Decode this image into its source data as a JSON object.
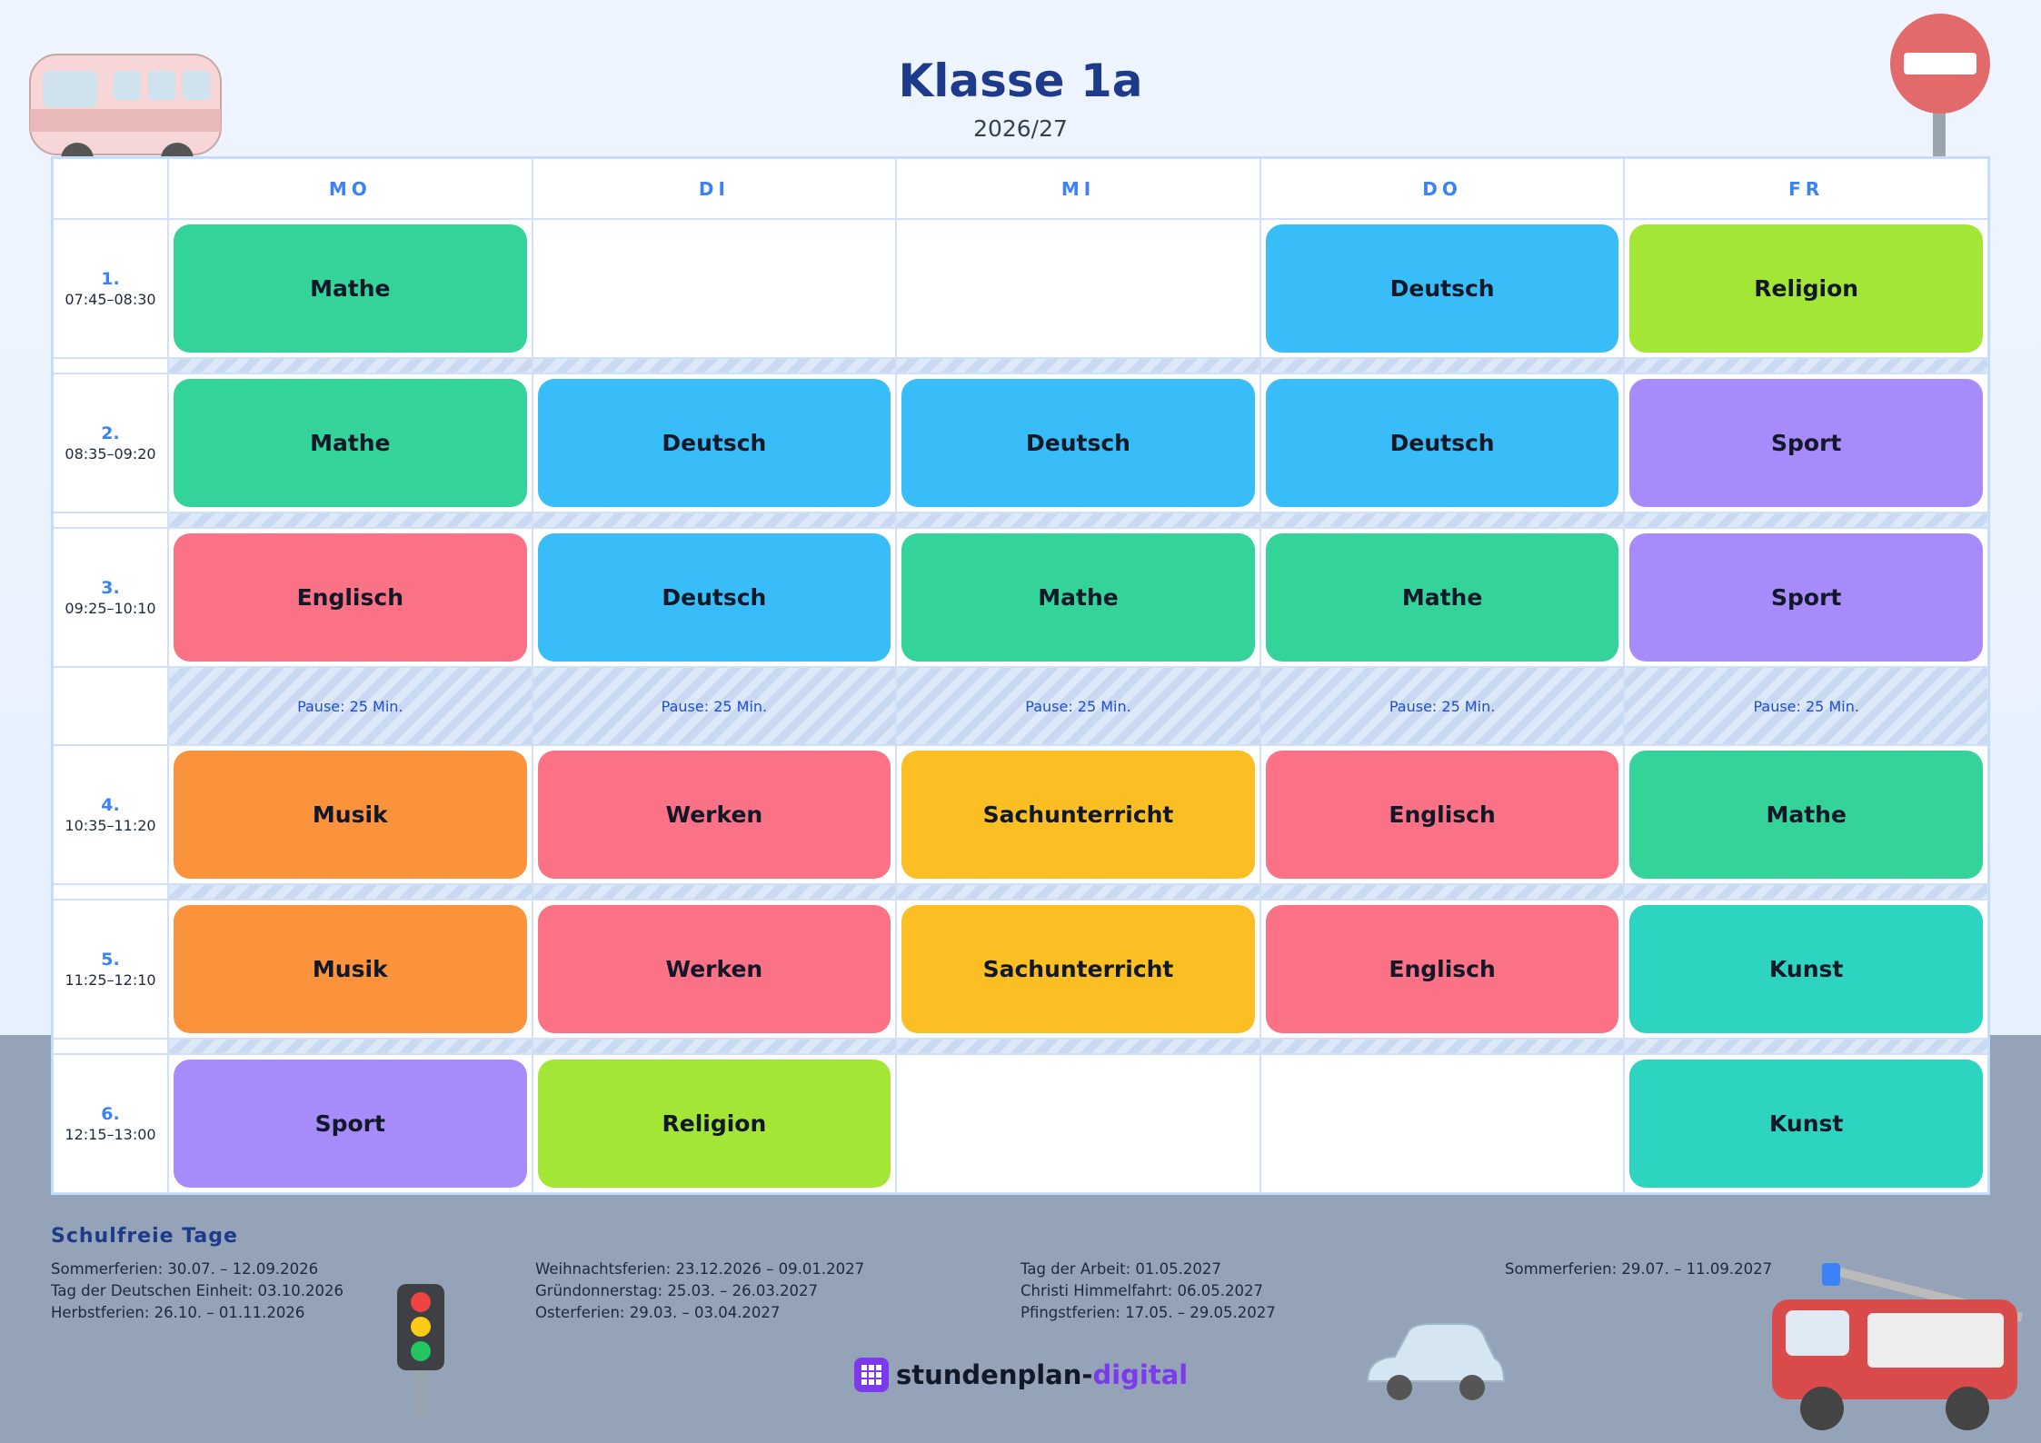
{
  "header": {
    "title": "Klasse 1a",
    "subtitle": "2026/27"
  },
  "timetable": {
    "days": [
      "MO",
      "DI",
      "MI",
      "DO",
      "FR"
    ],
    "colors": {
      "Mathe": "#34d399",
      "Deutsch": "#38bdf8",
      "Religion": "#a3e635",
      "Sport": "#a78bfa",
      "Englisch": "#fb7185",
      "Musik": "#fb923c",
      "Werken": "#fb7185",
      "Sachunterricht": "#fbbf24",
      "Kunst": "#2dd4bf"
    },
    "rows": [
      {
        "number": "1.",
        "time": "07:45–08:30",
        "cells": [
          "Mathe",
          null,
          null,
          "Deutsch",
          "Religion"
        ]
      },
      {
        "number": "2.",
        "time": "08:35–09:20",
        "cells": [
          "Mathe",
          "Deutsch",
          "Deutsch",
          "Deutsch",
          "Sport"
        ]
      },
      {
        "number": "3.",
        "time": "09:25–10:10",
        "cells": [
          "Englisch",
          "Deutsch",
          "Mathe",
          "Mathe",
          "Sport"
        ]
      },
      {
        "pause": [
          "Pause: 25 Min.",
          "Pause: 25 Min.",
          "Pause: 25 Min.",
          "Pause: 25 Min.",
          "Pause: 25 Min."
        ]
      },
      {
        "number": "4.",
        "time": "10:35–11:20",
        "cells": [
          "Musik",
          "Werken",
          "Sachunterricht",
          "Englisch",
          "Mathe"
        ]
      },
      {
        "number": "5.",
        "time": "11:25–12:10",
        "cells": [
          "Musik",
          "Werken",
          "Sachunterricht",
          "Englisch",
          "Kunst"
        ]
      },
      {
        "number": "6.",
        "time": "12:15–13:00",
        "cells": [
          "Sport",
          "Religion",
          null,
          null,
          "Kunst"
        ]
      }
    ]
  },
  "holidays": {
    "title": "Schulfreie Tage",
    "columns": [
      [
        "Sommerferien: 30.07. – 12.09.2026",
        "Tag der Deutschen Einheit: 03.10.2026",
        "Herbstferien: 26.10. – 01.11.2026"
      ],
      [
        "Weihnachtsferien: 23.12.2026 – 09.01.2027",
        "Gründonnerstag: 25.03. – 26.03.2027",
        "Osterferien: 29.03. – 03.04.2027"
      ],
      [
        "Tag der Arbeit: 01.05.2027",
        "Christi Himmelfahrt: 06.05.2027",
        "Pfingstferien: 17.05. – 29.05.2027"
      ],
      [
        "Sommerferien: 29.07. – 11.09.2027"
      ]
    ]
  },
  "brand": {
    "name": "stundenplan-",
    "accent": "digital"
  }
}
